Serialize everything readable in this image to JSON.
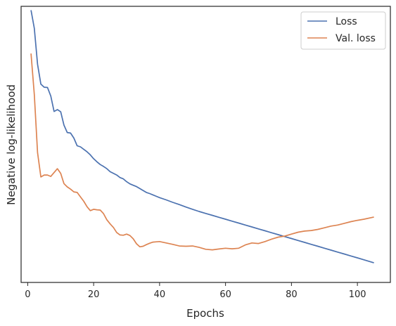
{
  "chart_data": {
    "type": "line",
    "title": "",
    "xlabel": "Epochs",
    "ylabel": "Negative log-likelihood",
    "xlim": [
      -2,
      110
    ],
    "ylim": [
      0,
      1
    ],
    "x_ticks": [
      0,
      20,
      40,
      60,
      80,
      100
    ],
    "y_ticks_shown": false,
    "grid": false,
    "legend_position": "top-right",
    "series": [
      {
        "name": "Loss",
        "color": "#4c72b0",
        "x": [
          1,
          2,
          3,
          4,
          5,
          6,
          7,
          8,
          9,
          10,
          11,
          12,
          13,
          14,
          15,
          16,
          17,
          18,
          19,
          20,
          21,
          22,
          23,
          24,
          25,
          26,
          27,
          28,
          29,
          30,
          31,
          32,
          33,
          34,
          35,
          36,
          37,
          38,
          39,
          40,
          42,
          44,
          46,
          48,
          50,
          52,
          54,
          56,
          58,
          60,
          62,
          64,
          66,
          68,
          70,
          72,
          74,
          76,
          78,
          80,
          82,
          84,
          86,
          88,
          90,
          92,
          94,
          96,
          98,
          100,
          102,
          105
        ],
        "values": [
          0.986,
          0.92,
          0.79,
          0.718,
          0.707,
          0.706,
          0.675,
          0.619,
          0.626,
          0.618,
          0.57,
          0.543,
          0.541,
          0.523,
          0.495,
          0.491,
          0.482,
          0.473,
          0.462,
          0.448,
          0.437,
          0.427,
          0.42,
          0.412,
          0.401,
          0.395,
          0.389,
          0.38,
          0.375,
          0.365,
          0.357,
          0.352,
          0.347,
          0.34,
          0.333,
          0.326,
          0.322,
          0.317,
          0.312,
          0.307,
          0.299,
          0.29,
          0.282,
          0.273,
          0.265,
          0.257,
          0.25,
          0.243,
          0.236,
          0.229,
          0.222,
          0.215,
          0.208,
          0.201,
          0.194,
          0.187,
          0.18,
          0.173,
          0.166,
          0.159,
          0.152,
          0.145,
          0.138,
          0.131,
          0.124,
          0.117,
          0.11,
          0.103,
          0.096,
          0.089,
          0.082,
          0.071
        ]
      },
      {
        "name": "Val. loss",
        "color": "#dd8452",
        "x": [
          1,
          2,
          3,
          4,
          5,
          6,
          7,
          8,
          9,
          10,
          11,
          12,
          13,
          14,
          15,
          16,
          17,
          18,
          19,
          20,
          21,
          22,
          23,
          24,
          25,
          26,
          27,
          28,
          29,
          30,
          31,
          32,
          33,
          34,
          35,
          36,
          37,
          38,
          39,
          40,
          42,
          44,
          46,
          48,
          50,
          52,
          54,
          56,
          58,
          60,
          62,
          64,
          66,
          68,
          70,
          72,
          74,
          76,
          78,
          80,
          82,
          84,
          86,
          88,
          90,
          92,
          94,
          96,
          98,
          100,
          102,
          105
        ],
        "values": [
          0.829,
          0.68,
          0.47,
          0.382,
          0.389,
          0.389,
          0.384,
          0.398,
          0.412,
          0.395,
          0.358,
          0.346,
          0.338,
          0.328,
          0.326,
          0.31,
          0.294,
          0.274,
          0.26,
          0.265,
          0.263,
          0.262,
          0.249,
          0.227,
          0.212,
          0.199,
          0.181,
          0.172,
          0.171,
          0.175,
          0.17,
          0.158,
          0.14,
          0.129,
          0.131,
          0.137,
          0.142,
          0.146,
          0.147,
          0.148,
          0.143,
          0.138,
          0.132,
          0.131,
          0.132,
          0.127,
          0.12,
          0.118,
          0.121,
          0.124,
          0.122,
          0.124,
          0.136,
          0.143,
          0.141,
          0.148,
          0.157,
          0.164,
          0.168,
          0.175,
          0.182,
          0.186,
          0.188,
          0.192,
          0.198,
          0.204,
          0.208,
          0.214,
          0.22,
          0.225,
          0.229,
          0.237
        ]
      }
    ]
  }
}
